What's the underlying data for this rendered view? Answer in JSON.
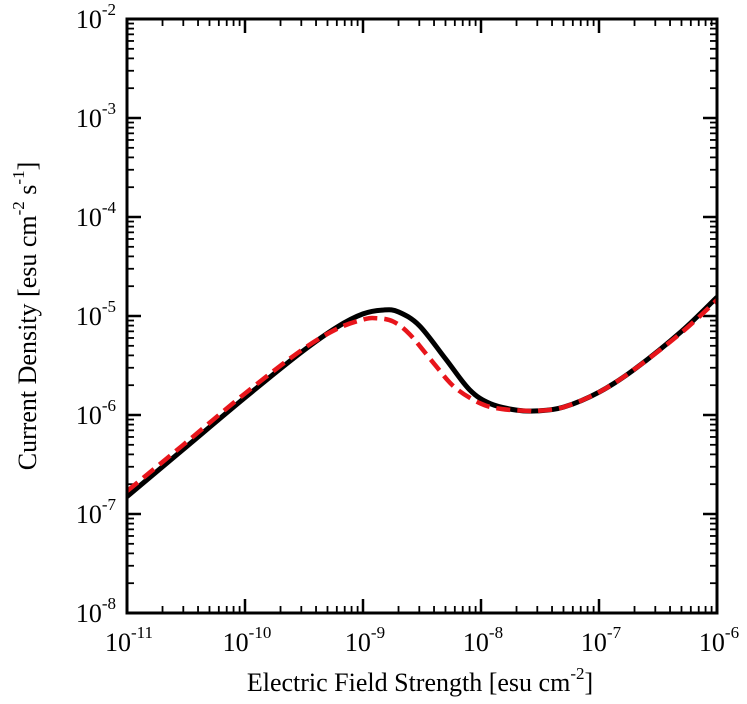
{
  "chart_data": {
    "type": "line",
    "title": "",
    "xlabel": "Electric Field Strength [esu cm",
    "xlabel_exp": "-2",
    "xlabel_tail": "]",
    "ylabel": "Current Density [esu cm",
    "ylabel_exp1": "-2",
    "ylabel_mid": " s",
    "ylabel_exp2": "-1",
    "ylabel_tail": "]",
    "x_scale": "log",
    "y_scale": "log",
    "xlim": [
      1e-11,
      1e-06
    ],
    "ylim": [
      1e-08,
      0.01
    ],
    "x_ticks": [
      {
        "base": "10",
        "exp": "-11"
      },
      {
        "base": "10",
        "exp": "-10"
      },
      {
        "base": "10",
        "exp": "-9"
      },
      {
        "base": "10",
        "exp": "-8"
      },
      {
        "base": "10",
        "exp": "-7"
      },
      {
        "base": "10",
        "exp": "-6"
      }
    ],
    "y_ticks": [
      {
        "base": "10",
        "exp": "-8"
      },
      {
        "base": "10",
        "exp": "-7"
      },
      {
        "base": "10",
        "exp": "-6"
      },
      {
        "base": "10",
        "exp": "-5"
      },
      {
        "base": "10",
        "exp": "-4"
      },
      {
        "base": "10",
        "exp": "-3"
      },
      {
        "base": "10",
        "exp": "-2"
      }
    ],
    "grid": false,
    "legend": "none",
    "series": [
      {
        "color": "#000000",
        "style": "solid",
        "x": [
          1e-11,
          3e-11,
          1e-10,
          3e-10,
          6e-10,
          1e-09,
          1.5e-09,
          2e-09,
          3e-09,
          5e-09,
          8e-09,
          1.2e-08,
          2e-08,
          3e-08,
          5e-08,
          1e-07,
          2e-07,
          5e-07,
          1e-06
        ],
        "y": [
          1.5e-07,
          4.5e-07,
          1.5e-06,
          4.3e-06,
          7.7e-06,
          1.05e-05,
          1.15e-05,
          1.1e-05,
          8e-06,
          3.7e-06,
          1.8e-06,
          1.3e-06,
          1.12e-06,
          1.1e-06,
          1.2e-06,
          1.7e-06,
          2.9e-06,
          7e-06,
          1.55e-05
        ]
      },
      {
        "color": "#e8151b",
        "style": "dashed",
        "x": [
          1e-11,
          3e-11,
          1e-10,
          3e-10,
          6e-10,
          1e-09,
          1.3e-09,
          1.8e-09,
          2.5e-09,
          4e-09,
          6e-09,
          1e-08,
          1.5e-08,
          2.5e-08,
          3e-08,
          5e-08,
          1e-07,
          2e-07,
          5e-07,
          1e-06
        ],
        "y": [
          1.7e-07,
          5e-07,
          1.65e-06,
          4.5e-06,
          7.4e-06,
          9.2e-06,
          9.5e-06,
          8.8e-06,
          6.5e-06,
          3.3e-06,
          1.9e-06,
          1.3e-06,
          1.15e-06,
          1.1e-06,
          1.1e-06,
          1.2e-06,
          1.7e-06,
          2.9e-06,
          6.8e-06,
          1.45e-05
        ]
      }
    ]
  }
}
